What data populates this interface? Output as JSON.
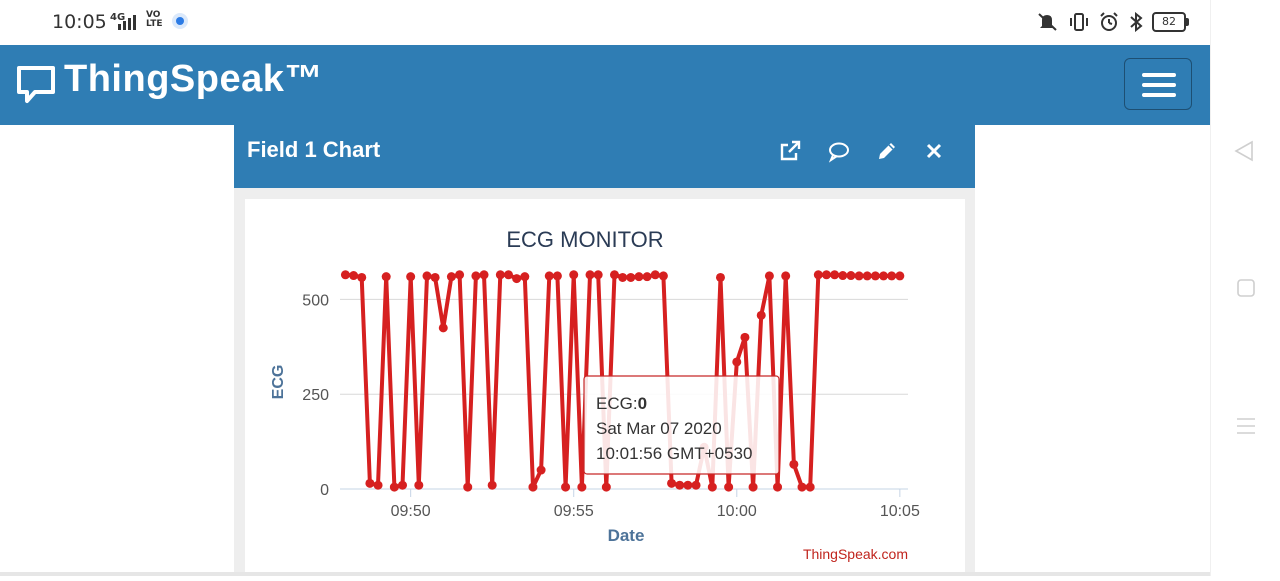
{
  "status_bar": {
    "time": "10:05",
    "network": "4G",
    "volte_top": "VO",
    "volte_bottom": "LTE",
    "battery": "82"
  },
  "navbar": {
    "brand": "ThingSpeak™"
  },
  "card": {
    "title": "Field 1 Chart",
    "tools": [
      "external-link-icon",
      "comment-icon",
      "pencil-icon",
      "close-icon"
    ]
  },
  "chart_data": {
    "type": "line",
    "title": "ECG MONITOR",
    "xlabel": "Date",
    "ylabel": "ECG",
    "credit": "ThingSpeak.com",
    "color": "#d62020",
    "x_ticks": [
      "09:50",
      "09:55",
      "10:00",
      "10:05"
    ],
    "y_ticks": [
      0,
      250,
      500
    ],
    "xlim": [
      "09:47:50",
      "10:05:15"
    ],
    "ylim": [
      0,
      575
    ],
    "grid": true,
    "series": [
      {
        "x": [
          "09:48:00",
          "09:48:15",
          "09:48:30",
          "09:48:45",
          "09:49:00",
          "09:49:15",
          "09:49:30",
          "09:49:45",
          "09:50:00",
          "09:50:15",
          "09:50:30",
          "09:50:45",
          "09:51:00",
          "09:51:15",
          "09:51:30",
          "09:51:45",
          "09:52:00",
          "09:52:15",
          "09:52:30",
          "09:52:45",
          "09:53:00",
          "09:53:15",
          "09:53:30",
          "09:53:45",
          "09:54:00",
          "09:54:15",
          "09:54:30",
          "09:54:45",
          "09:55:00",
          "09:55:15",
          "09:55:30",
          "09:55:45",
          "09:56:00",
          "09:56:15",
          "09:56:30",
          "09:56:45",
          "09:57:00",
          "09:57:15",
          "09:57:30",
          "09:57:45",
          "09:58:00",
          "09:58:15",
          "09:58:30",
          "09:58:45",
          "09:59:00",
          "09:59:15",
          "09:59:30",
          "09:59:45",
          "10:00:00",
          "10:00:15",
          "10:00:30",
          "10:00:45",
          "10:01:00",
          "10:01:15",
          "10:01:30",
          "10:01:45",
          "10:02:00",
          "10:02:15",
          "10:02:30",
          "10:02:45",
          "10:03:00",
          "10:03:15",
          "10:03:30",
          "10:03:45",
          "10:04:00",
          "10:04:15",
          "10:04:30",
          "10:04:45",
          "10:05:00"
        ],
        "values": [
          565,
          563,
          558,
          15,
          10,
          560,
          5,
          10,
          560,
          10,
          562,
          558,
          425,
          560,
          565,
          5,
          562,
          565,
          10,
          565,
          565,
          555,
          560,
          5,
          50,
          562,
          562,
          5,
          565,
          5,
          565,
          565,
          5,
          565,
          558,
          558,
          560,
          560,
          565,
          562,
          15,
          10,
          10,
          10,
          110,
          5,
          558,
          5,
          335,
          400,
          5,
          458,
          562,
          5,
          562,
          65,
          5,
          5,
          565,
          565,
          565,
          563,
          563,
          562,
          562,
          562,
          562,
          562,
          562
        ],
        "points": [
          565,
          563,
          558,
          15,
          10,
          560,
          5,
          10,
          560,
          10,
          562,
          558,
          425,
          560,
          565,
          5,
          562,
          565,
          10,
          565,
          565,
          555,
          560,
          5,
          50,
          562,
          562,
          5,
          565,
          5,
          565,
          565,
          5,
          565,
          558,
          558,
          560,
          560,
          565,
          562,
          15,
          10,
          10,
          10,
          110,
          5,
          558,
          5,
          335,
          400,
          5,
          458,
          562,
          5,
          562,
          65,
          5,
          5,
          565,
          565,
          565,
          563,
          563,
          562,
          562,
          562,
          562,
          562,
          562
        ]
      }
    ],
    "tooltip": {
      "label": "ECG:",
      "value": "0",
      "date": "Sat Mar 07 2020",
      "time": "10:01:56 GMT+0530"
    }
  }
}
